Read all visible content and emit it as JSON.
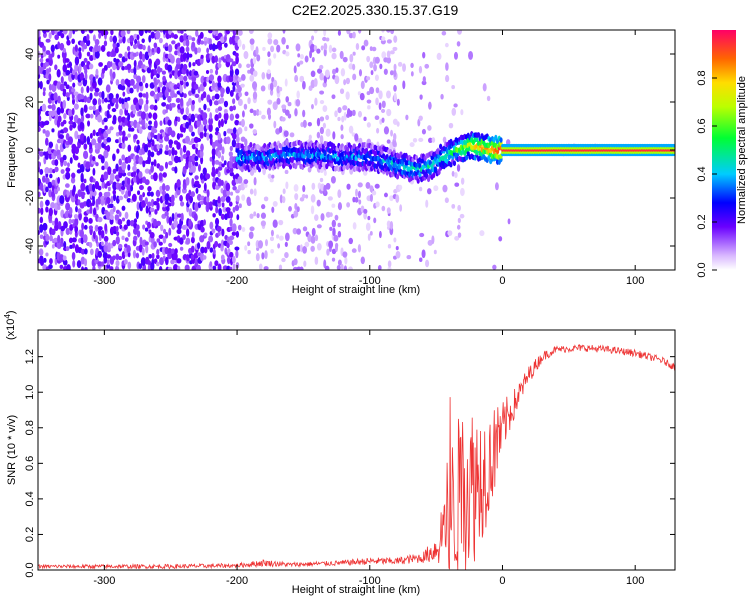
{
  "title": "C2E2.2025.330.15.37.G19",
  "chart_data": [
    {
      "type": "heatmap",
      "name": "spectrogram",
      "xlabel": "Height of straight line (km)",
      "ylabel": "Frequency (Hz)",
      "xlim": [
        -350,
        130
      ],
      "ylim": [
        -50,
        50
      ],
      "xticks": [
        -300,
        -200,
        -100,
        0,
        100
      ],
      "yticks": [
        -40,
        -20,
        0,
        20,
        40
      ],
      "colorbar": {
        "label": "Normalized spectral amplitude",
        "range": [
          0,
          1
        ],
        "ticks": [
          "0.0",
          "0.2",
          "0.4",
          "0.6",
          "0.8"
        ],
        "tick_values": [
          0.0,
          0.2,
          0.4,
          0.6,
          0.8
        ]
      },
      "signal_track": {
        "x": [
          -200,
          -180,
          -160,
          -140,
          -120,
          -100,
          -80,
          -65,
          -55,
          -45,
          -35,
          -25,
          -15,
          -5,
          0,
          50,
          100,
          130
        ],
        "freq_hz": [
          -3,
          -3,
          -2,
          -2,
          -3,
          -3,
          -6,
          -8,
          -7,
          -3,
          0,
          2,
          1,
          0,
          0,
          0,
          0,
          0
        ],
        "amplitude": [
          0.35,
          0.35,
          0.35,
          0.35,
          0.35,
          0.35,
          0.4,
          0.45,
          0.45,
          0.45,
          0.55,
          0.7,
          0.8,
          0.9,
          0.95,
          0.95,
          0.95,
          0.95
        ]
      }
    },
    {
      "type": "line",
      "name": "snr",
      "xlabel": "Height of straight line (km)",
      "ylabel": "SNR (10 * v/v)",
      "multiplier_label": "(x10",
      "multiplier_exp": "4",
      "multiplier_close": ")",
      "xlim": [
        -350,
        130
      ],
      "ylim": [
        0,
        1.35
      ],
      "xticks": [
        -300,
        -200,
        -100,
        0,
        100
      ],
      "yticks": [
        0.0,
        0.2,
        0.4,
        0.6,
        0.8,
        1.0,
        1.2
      ],
      "color": "#ee3333",
      "envelope": {
        "x": [
          -350,
          -250,
          -200,
          -180,
          -160,
          -120,
          -100,
          -80,
          -60,
          -50,
          -40,
          -30,
          -20,
          -10,
          0,
          10,
          20,
          30,
          40,
          60,
          80,
          100,
          120,
          130
        ],
        "base": [
          0.02,
          0.02,
          0.025,
          0.04,
          0.03,
          0.04,
          0.05,
          0.05,
          0.07,
          0.12,
          0.3,
          0.45,
          0.5,
          0.6,
          0.8,
          0.95,
          1.1,
          1.2,
          1.24,
          1.25,
          1.24,
          1.22,
          1.18,
          1.14
        ],
        "noise": [
          0.01,
          0.012,
          0.012,
          0.02,
          0.012,
          0.015,
          0.02,
          0.02,
          0.03,
          0.08,
          0.4,
          0.5,
          0.45,
          0.3,
          0.15,
          0.08,
          0.05,
          0.03,
          0.02,
          0.02,
          0.02,
          0.02,
          0.02,
          0.02
        ]
      }
    }
  ]
}
